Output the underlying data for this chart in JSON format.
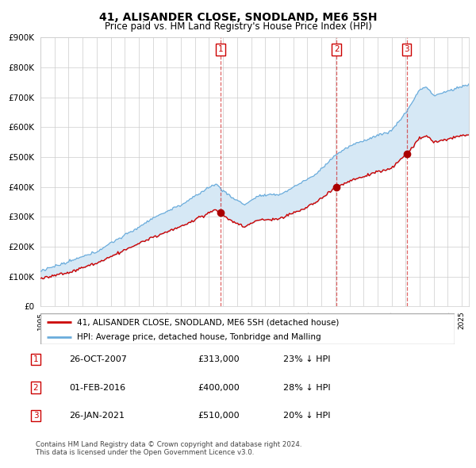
{
  "title": "41, ALISANDER CLOSE, SNODLAND, ME6 5SH",
  "subtitle": "Price paid vs. HM Land Registry's House Price Index (HPI)",
  "ylim": [
    0,
    900000
  ],
  "yticks": [
    0,
    100000,
    200000,
    300000,
    400000,
    500000,
    600000,
    700000,
    800000,
    900000
  ],
  "ytick_labels": [
    "£0",
    "£100K",
    "£200K",
    "£300K",
    "£400K",
    "£500K",
    "£600K",
    "£700K",
    "£800K",
    "£900K"
  ],
  "hpi_color": "#6aacdc",
  "hpi_fill_color": "#d6e8f5",
  "sale_color": "#cc0000",
  "grid_color": "#cccccc",
  "transactions": [
    {
      "num": 1,
      "date_str": "26-OCT-2007",
      "date_x": 2007.82,
      "price": 313000
    },
    {
      "num": 2,
      "date_str": "01-FEB-2016",
      "date_x": 2016.08,
      "price": 400000
    },
    {
      "num": 3,
      "date_str": "26-JAN-2021",
      "date_x": 2021.07,
      "price": 510000
    }
  ],
  "legend_label_sale": "41, ALISANDER CLOSE, SNODLAND, ME6 5SH (detached house)",
  "legend_label_hpi": "HPI: Average price, detached house, Tonbridge and Malling",
  "table_rows": [
    {
      "num": 1,
      "date": "26-OCT-2007",
      "price": "£313,000",
      "pct_hpi": "23% ↓ HPI"
    },
    {
      "num": 2,
      "date": "01-FEB-2016",
      "price": "£400,000",
      "pct_hpi": "28% ↓ HPI"
    },
    {
      "num": 3,
      "date": "26-JAN-2021",
      "price": "£510,000",
      "pct_hpi": "20% ↓ HPI"
    }
  ],
  "footer1": "Contains HM Land Registry data © Crown copyright and database right 2024.",
  "footer2": "This data is licensed under the Open Government Licence v3.0.",
  "xmin": 1995,
  "xmax": 2025.5
}
